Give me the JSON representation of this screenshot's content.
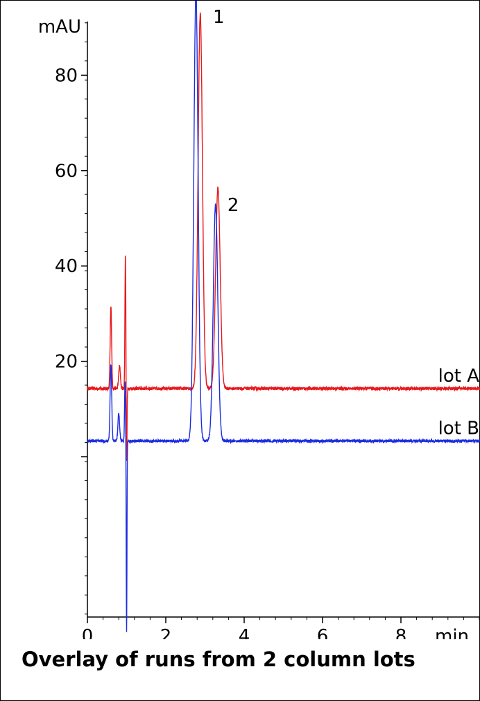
{
  "chart_data": {
    "type": "line",
    "title": "Overlay of runs from 2 column lots",
    "ylabel": "mAU",
    "xlabel": "min",
    "xlim": [
      0,
      10
    ],
    "ylim": [
      -45,
      97
    ],
    "x_ticks": [
      0,
      2,
      4,
      6,
      8
    ],
    "y_ticks": [
      20,
      40,
      60,
      80
    ],
    "y_minor_step": 4,
    "x_minor_step": 0.4,
    "grid": false,
    "series": [
      {
        "name": "lot A",
        "color": "#e8181b",
        "baseline": 14.3,
        "noise": 0.35,
        "peaks": [
          {
            "x": 0.6,
            "y": 31.5,
            "w": 0.018
          },
          {
            "x": 0.82,
            "y": 19,
            "w": 0.022
          },
          {
            "x": 0.97,
            "y": 42.5,
            "w": 0.012
          },
          {
            "x": 1.0,
            "y": -2,
            "w": 0.01
          },
          {
            "x": 2.88,
            "y": 93,
            "w": 0.055
          },
          {
            "x": 3.33,
            "y": 56.5,
            "w": 0.058
          }
        ]
      },
      {
        "name": "lot B",
        "color": "#1c2de0",
        "baseline": 3.3,
        "noise": 0.3,
        "peaks": [
          {
            "x": 0.6,
            "y": 19.5,
            "w": 0.02
          },
          {
            "x": 0.8,
            "y": 9,
            "w": 0.022
          },
          {
            "x": 0.96,
            "y": 16,
            "w": 0.012
          },
          {
            "x": 1.0,
            "y": -37,
            "w": 0.009
          },
          {
            "x": 2.77,
            "y": 97.5,
            "w": 0.055
          },
          {
            "x": 3.27,
            "y": 53,
            "w": 0.058
          }
        ]
      }
    ],
    "annotations": [
      {
        "text": "1",
        "x": 3.35,
        "y": 91
      },
      {
        "text": "2",
        "x": 3.72,
        "y": 51.5
      }
    ]
  }
}
